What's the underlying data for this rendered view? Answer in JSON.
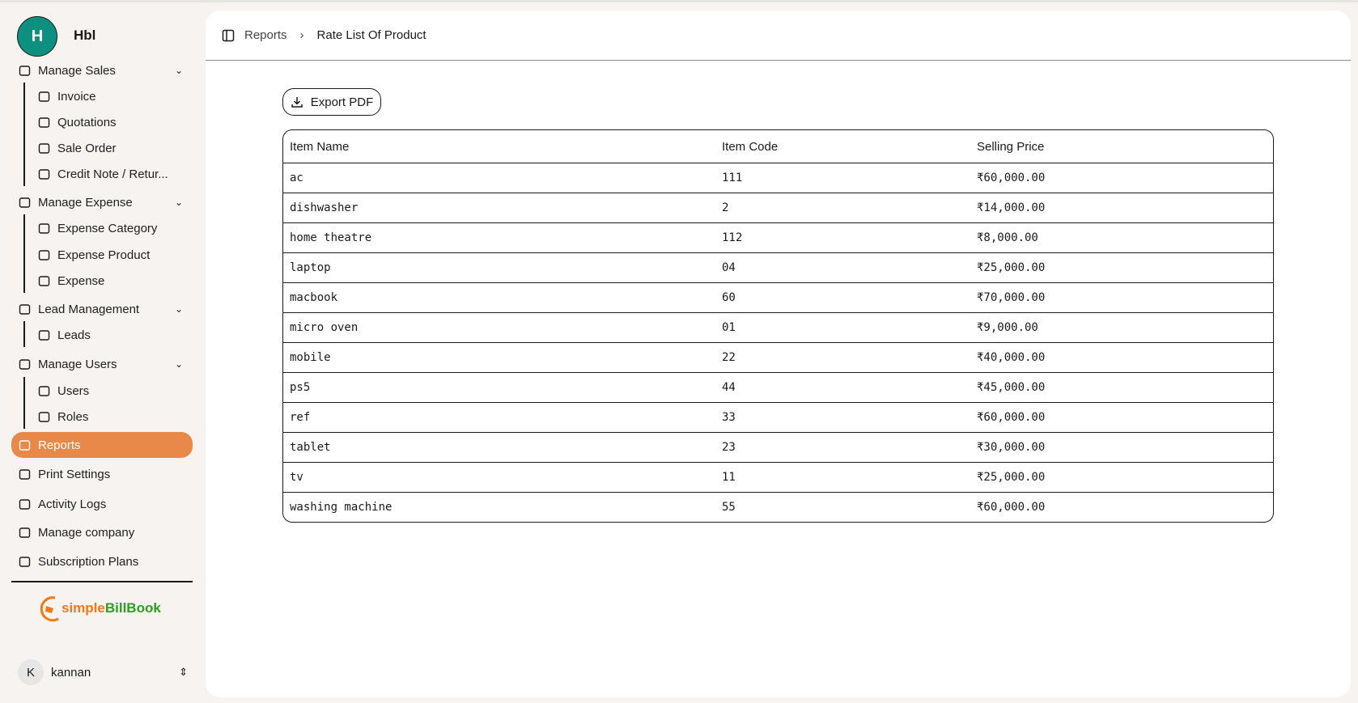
{
  "sidebar": {
    "org_initial": "H",
    "org_name": "Hbl",
    "items": [
      {
        "label": "Manage Sales",
        "icon": "rupee-circle-icon",
        "expandable": true
      },
      {
        "label": "Invoice",
        "icon": "wallet-icon"
      },
      {
        "label": "Quotations",
        "icon": "file-import-icon"
      },
      {
        "label": "Sale Order",
        "icon": "package-check-icon"
      },
      {
        "label": "Credit Note / Retur...",
        "icon": "undo-arrow-icon"
      },
      {
        "label": "Manage Expense",
        "icon": "wallet-icon",
        "expandable": true
      },
      {
        "label": "Expense Category",
        "icon": "user-pen-icon"
      },
      {
        "label": "Expense Product",
        "icon": "boxes-icon"
      },
      {
        "label": "Expense",
        "icon": "wallet-icon"
      },
      {
        "label": "Lead Management",
        "icon": "contact-square-icon",
        "expandable": true
      },
      {
        "label": "Leads",
        "icon": "document-list-icon"
      },
      {
        "label": "Manage Users",
        "icon": "user-cog-icon",
        "expandable": true
      },
      {
        "label": "Users",
        "icon": "user-pen-icon"
      },
      {
        "label": "Roles",
        "icon": "contact-square-icon"
      },
      {
        "label": "Reports",
        "icon": "report-chart-icon",
        "active": true
      },
      {
        "label": "Print Settings",
        "icon": "printer-icon"
      },
      {
        "label": "Activity Logs",
        "icon": "file-log-icon"
      },
      {
        "label": "Manage company",
        "icon": "building-icon"
      },
      {
        "label": "Subscription Plans",
        "icon": "credit-card-icon"
      }
    ],
    "logo": {
      "part1": "simple",
      "part2": "BillBook",
      "color1": "#f07a17",
      "color2": "#2e9e1f"
    },
    "user": {
      "initial": "K",
      "name": "kannan"
    },
    "active_color": "#e8894a"
  },
  "header": {
    "breadcrumb": [
      "Reports",
      "Rate List Of Product"
    ]
  },
  "toolbar": {
    "export_label": "Export PDF"
  },
  "table": {
    "columns": [
      "Item Name",
      "Item Code",
      "Selling Price"
    ],
    "rows": [
      [
        "ac",
        "111",
        "₹60,000.00"
      ],
      [
        "dishwasher",
        "2",
        "₹14,000.00"
      ],
      [
        "home theatre",
        "112",
        "₹8,000.00"
      ],
      [
        "laptop",
        "04",
        "₹25,000.00"
      ],
      [
        "macbook",
        "60",
        "₹70,000.00"
      ],
      [
        "micro oven",
        "01",
        "₹9,000.00"
      ],
      [
        "mobile",
        "22",
        "₹40,000.00"
      ],
      [
        "ps5",
        "44",
        "₹45,000.00"
      ],
      [
        "ref",
        "33",
        "₹60,000.00"
      ],
      [
        "tablet",
        "23",
        "₹30,000.00"
      ],
      [
        "tv",
        "11",
        "₹25,000.00"
      ],
      [
        "washing machine",
        "55",
        "₹60,000.00"
      ]
    ]
  }
}
